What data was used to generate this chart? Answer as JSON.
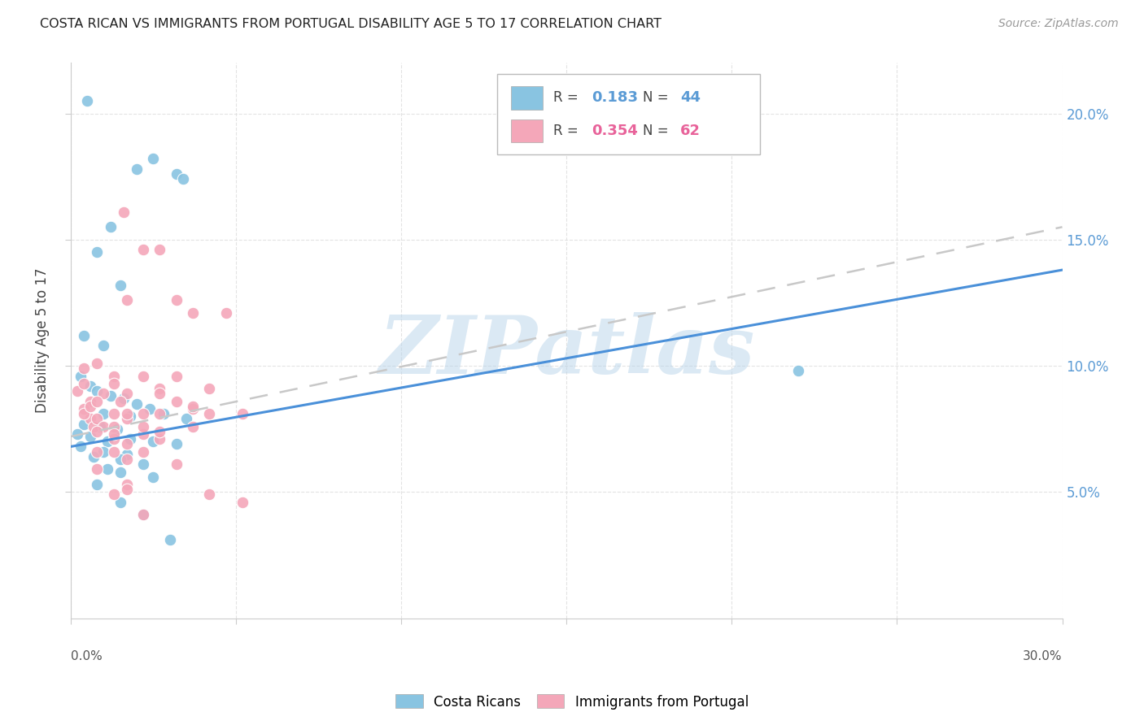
{
  "title": "COSTA RICAN VS IMMIGRANTS FROM PORTUGAL DISABILITY AGE 5 TO 17 CORRELATION CHART",
  "source": "Source: ZipAtlas.com",
  "ylabel": "Disability Age 5 to 17",
  "watermark": "ZIPatlas",
  "legend1_R": "0.183",
  "legend1_N": "44",
  "legend2_R": "0.354",
  "legend2_N": "62",
  "blue_color": "#89c4e1",
  "pink_color": "#f4a7b9",
  "blue_line_color": "#4a90d9",
  "pink_line_color": "#c0c0c0",
  "blue_scatter": [
    [
      0.5,
      20.5
    ],
    [
      2.5,
      18.2
    ],
    [
      2.0,
      17.8
    ],
    [
      3.2,
      17.6
    ],
    [
      3.4,
      17.4
    ],
    [
      1.2,
      15.5
    ],
    [
      0.8,
      14.5
    ],
    [
      1.5,
      13.2
    ],
    [
      0.4,
      11.2
    ],
    [
      1.0,
      10.8
    ],
    [
      0.3,
      9.6
    ],
    [
      0.6,
      9.2
    ],
    [
      0.8,
      9.0
    ],
    [
      1.2,
      8.8
    ],
    [
      1.6,
      8.7
    ],
    [
      2.0,
      8.5
    ],
    [
      2.4,
      8.3
    ],
    [
      1.0,
      8.1
    ],
    [
      1.8,
      8.0
    ],
    [
      2.8,
      8.1
    ],
    [
      3.5,
      7.9
    ],
    [
      0.4,
      7.7
    ],
    [
      0.9,
      7.6
    ],
    [
      1.4,
      7.5
    ],
    [
      0.2,
      7.3
    ],
    [
      0.6,
      7.2
    ],
    [
      1.8,
      7.1
    ],
    [
      2.5,
      7.0
    ],
    [
      1.1,
      7.0
    ],
    [
      3.2,
      6.9
    ],
    [
      0.3,
      6.8
    ],
    [
      1.0,
      6.6
    ],
    [
      1.7,
      6.5
    ],
    [
      0.7,
      6.4
    ],
    [
      1.5,
      6.3
    ],
    [
      2.2,
      6.1
    ],
    [
      1.1,
      5.9
    ],
    [
      1.5,
      5.8
    ],
    [
      2.5,
      5.6
    ],
    [
      0.8,
      5.3
    ],
    [
      1.5,
      4.6
    ],
    [
      2.2,
      4.1
    ],
    [
      3.0,
      3.1
    ],
    [
      22.0,
      9.8
    ]
  ],
  "pink_scatter": [
    [
      0.2,
      9.0
    ],
    [
      0.4,
      9.3
    ],
    [
      0.6,
      8.6
    ],
    [
      0.4,
      8.3
    ],
    [
      0.6,
      7.9
    ],
    [
      0.8,
      10.1
    ],
    [
      0.4,
      9.9
    ],
    [
      1.0,
      8.9
    ],
    [
      0.7,
      7.6
    ],
    [
      1.3,
      9.6
    ],
    [
      0.4,
      8.1
    ],
    [
      0.8,
      7.9
    ],
    [
      1.6,
      16.1
    ],
    [
      1.3,
      9.3
    ],
    [
      2.2,
      14.6
    ],
    [
      2.7,
      14.6
    ],
    [
      1.7,
      12.6
    ],
    [
      3.2,
      12.6
    ],
    [
      0.6,
      8.4
    ],
    [
      1.0,
      7.6
    ],
    [
      1.7,
      8.9
    ],
    [
      1.5,
      8.6
    ],
    [
      2.2,
      8.1
    ],
    [
      2.7,
      8.1
    ],
    [
      3.7,
      12.1
    ],
    [
      4.7,
      12.1
    ],
    [
      3.2,
      9.6
    ],
    [
      4.2,
      9.1
    ],
    [
      2.7,
      9.1
    ],
    [
      2.2,
      9.6
    ],
    [
      4.2,
      8.1
    ],
    [
      5.2,
      8.1
    ],
    [
      1.3,
      8.1
    ],
    [
      1.7,
      7.9
    ],
    [
      0.8,
      7.4
    ],
    [
      1.3,
      7.6
    ],
    [
      2.2,
      7.3
    ],
    [
      2.7,
      7.1
    ],
    [
      3.7,
      7.6
    ],
    [
      1.3,
      6.6
    ],
    [
      1.7,
      6.3
    ],
    [
      3.2,
      6.1
    ],
    [
      4.2,
      4.9
    ],
    [
      5.2,
      4.6
    ],
    [
      1.3,
      4.9
    ],
    [
      2.2,
      4.1
    ],
    [
      3.2,
      8.6
    ],
    [
      3.7,
      8.3
    ],
    [
      0.8,
      8.6
    ],
    [
      1.7,
      8.1
    ],
    [
      2.2,
      7.6
    ],
    [
      1.3,
      7.1
    ],
    [
      1.7,
      6.9
    ],
    [
      0.8,
      6.6
    ],
    [
      1.7,
      5.3
    ],
    [
      2.7,
      8.9
    ],
    [
      3.7,
      8.4
    ],
    [
      1.3,
      7.3
    ],
    [
      2.2,
      6.6
    ],
    [
      2.7,
      7.4
    ],
    [
      0.8,
      5.9
    ],
    [
      1.7,
      5.1
    ]
  ],
  "xmin": 0,
  "xmax": 30,
  "ymin": 0,
  "ymax": 22,
  "blue_line_x": [
    0,
    30
  ],
  "blue_line_y": [
    6.8,
    13.8
  ],
  "pink_line_x": [
    0,
    30
  ],
  "pink_line_y": [
    7.2,
    15.5
  ]
}
